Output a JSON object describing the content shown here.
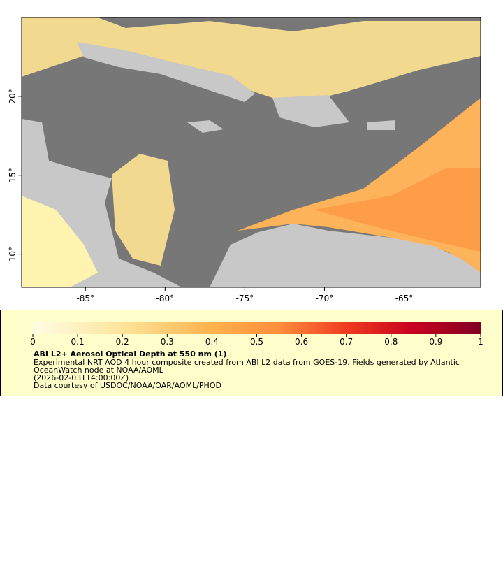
{
  "map": {
    "xlim": [
      -89,
      -60.2
    ],
    "ylim": [
      7.9,
      25
    ],
    "xticks": [
      {
        "value": -85,
        "label": "-85°"
      },
      {
        "value": -80,
        "label": "-80°"
      },
      {
        "value": -75,
        "label": "-75°"
      },
      {
        "value": -70,
        "label": "-70°"
      },
      {
        "value": -65,
        "label": "-65°"
      }
    ],
    "yticks": [
      {
        "value": 10,
        "label": "10°"
      },
      {
        "value": 15,
        "label": "15°"
      },
      {
        "value": 20,
        "label": "20°"
      }
    ]
  },
  "colorbar": {
    "lim": [
      0,
      1
    ],
    "ticks": [
      0,
      0.1,
      0.2,
      0.3,
      0.4,
      0.5,
      0.6,
      0.7,
      0.8,
      0.9,
      1
    ]
  },
  "legend": {
    "title": "ABI L2+ Aerosol Optical Depth at 550 nm (1)",
    "lines": [
      "Experimental NRT AOD 4 hour composite created from ABI L2 data from GOES-19. Fields generated by Atlantic",
      "OceanWatch node at NOAA/AOML",
      "(2026-02-03T14:00:00Z)",
      "Data courtesy of USDOC/NOAA/OAR/AOML/PHOD"
    ]
  }
}
